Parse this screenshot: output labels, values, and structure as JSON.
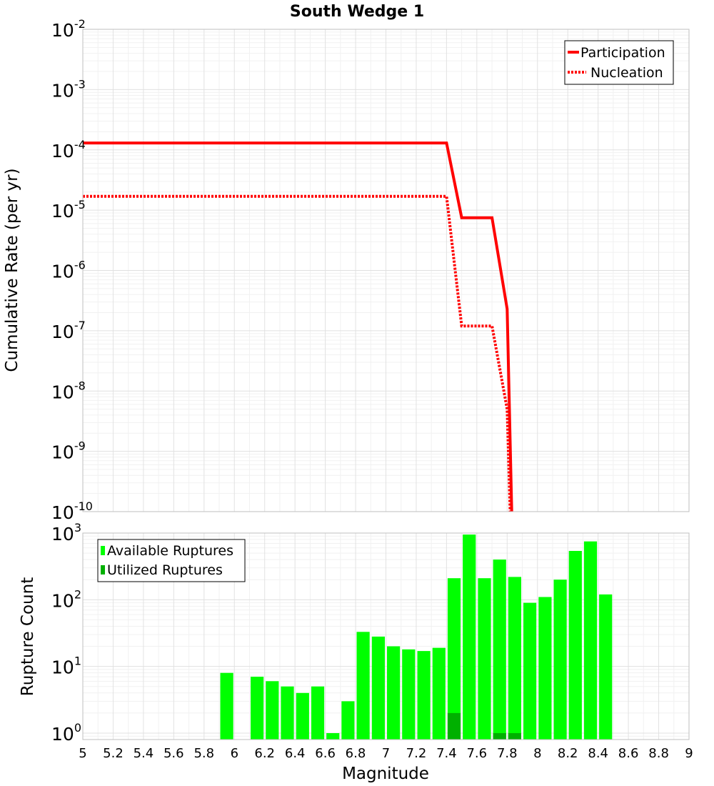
{
  "chart_data": [
    {
      "type": "line",
      "title": "South Wedge 1",
      "xlabel": "",
      "ylabel": "Cumulative Rate (per yr)",
      "xlim": [
        5,
        9
      ],
      "ylim": [
        1e-10,
        0.01
      ],
      "yscale": "log",
      "y_tick_exponents": [
        "-2",
        "-3",
        "-4",
        "-5",
        "-6",
        "-7",
        "-8",
        "-9",
        "-10"
      ],
      "y_tick_base": "10",
      "grid": true,
      "legend_position": "top-right",
      "series": [
        {
          "name": "Participation",
          "color": "#ff0000",
          "style": "solid",
          "x": [
            5.0,
            7.4,
            7.5,
            7.7,
            7.8,
            7.83
          ],
          "y": [
            0.00013,
            0.00013,
            7.5e-06,
            7.5e-06,
            2.3e-07,
            1e-10
          ]
        },
        {
          "name": "Nucleation",
          "color": "#ff0000",
          "style": "dotted",
          "x": [
            5.0,
            7.4,
            7.5,
            7.7,
            7.8,
            7.82
          ],
          "y": [
            1.7e-05,
            1.7e-05,
            1.2e-07,
            1.2e-07,
            5e-09,
            1e-10
          ]
        }
      ]
    },
    {
      "type": "bar",
      "title": "",
      "xlabel": "Magnitude",
      "ylabel": "Rupture Count",
      "xlim": [
        5,
        9
      ],
      "ylim": [
        0.8,
        1000
      ],
      "yscale": "log",
      "y_tick_exponents": [
        "3",
        "2",
        "1",
        "0"
      ],
      "y_tick_base": "10",
      "x_ticks": [
        "5",
        "5.2",
        "5.4",
        "5.6",
        "5.8",
        "6",
        "6.2",
        "6.4",
        "6.6",
        "6.8",
        "7",
        "7.2",
        "7.4",
        "7.6",
        "7.8",
        "8",
        "8.2",
        "8.4",
        "8.6",
        "8.8",
        "9"
      ],
      "bar_width": 0.1,
      "grid": true,
      "legend_position": "top-left",
      "series": [
        {
          "name": "Available Ruptures",
          "color": "#00ff00",
          "x": [
            5.95,
            6.15,
            6.25,
            6.35,
            6.45,
            6.55,
            6.65,
            6.75,
            6.85,
            6.95,
            7.05,
            7.15,
            7.25,
            7.35,
            7.45,
            7.55,
            7.65,
            7.75,
            7.85,
            7.95,
            8.05,
            8.15,
            8.25,
            8.35,
            8.45
          ],
          "values": [
            8,
            7,
            6,
            5,
            4,
            5,
            1,
            3,
            33,
            28,
            20,
            18,
            17,
            19,
            210,
            950,
            210,
            400,
            220,
            90,
            110,
            200,
            540,
            750,
            120
          ]
        },
        {
          "name": "Utilized Ruptures",
          "color": "#00b000",
          "x": [
            7.45,
            7.75,
            7.85
          ],
          "values": [
            2,
            1,
            1
          ]
        }
      ]
    }
  ]
}
